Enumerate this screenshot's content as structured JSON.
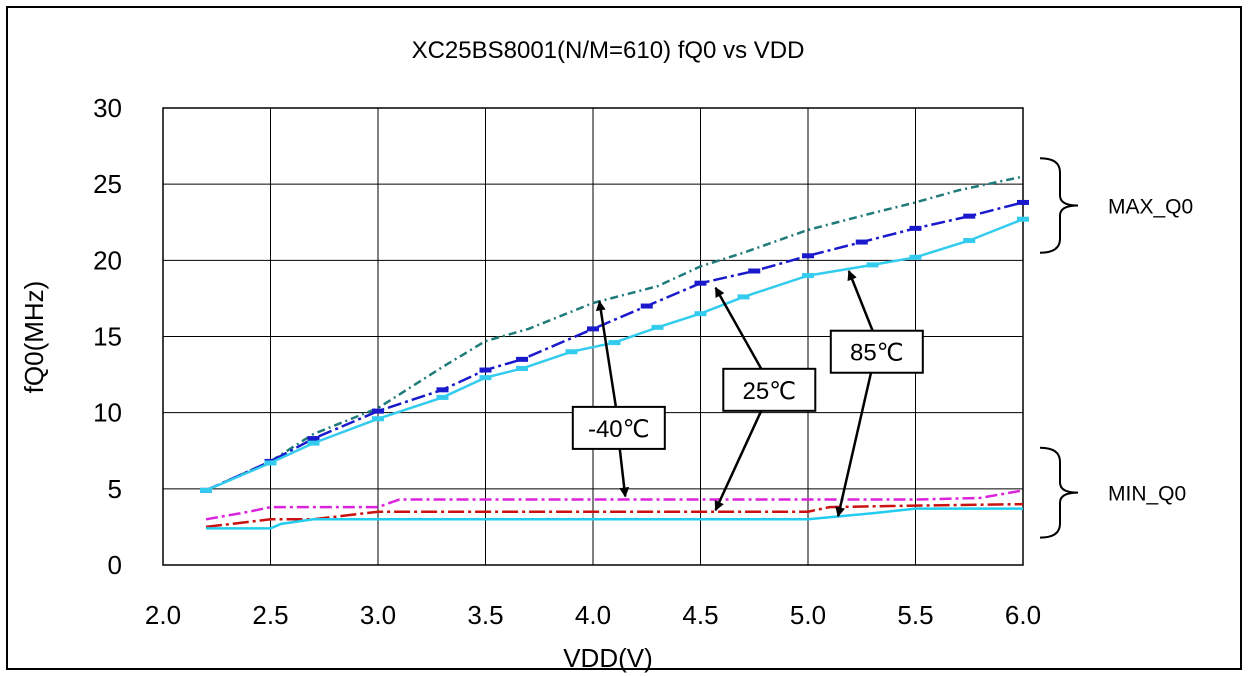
{
  "chart_data": {
    "type": "line",
    "title": "XC25BS8001(N/M=610)  fQ0 vs VDD",
    "xlabel": "VDD(V)",
    "ylabel": "fQ0(MHz)",
    "xlim": [
      2.0,
      6.0
    ],
    "ylim": [
      0,
      30
    ],
    "x_ticks": [
      "2.0",
      "2.5",
      "3.0",
      "3.5",
      "4.0",
      "4.5",
      "5.0",
      "5.5",
      "6.0"
    ],
    "y_ticks": [
      "0",
      "5",
      "10",
      "15",
      "20",
      "25",
      "30"
    ],
    "grid": true,
    "series": [
      {
        "color": "#1f7a7a",
        "dash": "8,4,2,4",
        "x": [
          2.2,
          2.5,
          2.7,
          3.0,
          3.3,
          3.5,
          3.7,
          4.0,
          4.3,
          4.5,
          4.7,
          5.0,
          5.3,
          5.5,
          5.7,
          6.0
        ],
        "y": [
          4.9,
          6.8,
          8.6,
          10.3,
          13.0,
          14.7,
          15.5,
          17.2,
          18.3,
          19.6,
          20.5,
          22.0,
          23.1,
          23.8,
          24.6,
          25.5
        ]
      },
      {
        "color": "#1a1acc",
        "dash": "14,4,3,4",
        "markers": true,
        "x": [
          2.2,
          2.5,
          2.7,
          3.0,
          3.3,
          3.5,
          3.67,
          4.0,
          4.25,
          4.5,
          4.75,
          5.0,
          5.25,
          5.5,
          5.75,
          6.0
        ],
        "y": [
          4.9,
          6.8,
          8.3,
          10.1,
          11.5,
          12.8,
          13.5,
          15.5,
          17.0,
          18.5,
          19.3,
          20.3,
          21.2,
          22.1,
          22.9,
          23.8
        ]
      },
      {
        "color": "#33ccee",
        "dash": "",
        "markers": true,
        "x": [
          2.2,
          2.5,
          2.7,
          3.0,
          3.3,
          3.5,
          3.67,
          3.9,
          4.1,
          4.3,
          4.5,
          4.7,
          5.0,
          5.3,
          5.5,
          5.75,
          6.0
        ],
        "y": [
          4.9,
          6.7,
          8.0,
          9.6,
          11.0,
          12.3,
          12.9,
          14.0,
          14.6,
          15.6,
          16.5,
          17.6,
          19.0,
          19.7,
          20.2,
          21.3,
          22.7
        ]
      },
      {
        "color": "#dd22dd",
        "dash": "12,4,3,4",
        "x": [
          2.2,
          2.4,
          2.5,
          3.0,
          3.1,
          3.5,
          4.0,
          4.5,
          5.0,
          5.5,
          5.8,
          6.0
        ],
        "y": [
          3.0,
          3.5,
          3.8,
          3.8,
          4.3,
          4.3,
          4.3,
          4.3,
          4.3,
          4.3,
          4.4,
          4.9
        ]
      },
      {
        "color": "#cc1111",
        "dash": "16,4,3,4",
        "x": [
          2.2,
          2.5,
          2.7,
          3.0,
          3.5,
          4.0,
          4.5,
          5.0,
          5.1,
          5.5,
          6.0
        ],
        "y": [
          2.5,
          3.0,
          3.0,
          3.5,
          3.5,
          3.5,
          3.5,
          3.5,
          3.8,
          3.9,
          4.0
        ]
      },
      {
        "color": "#22ccee",
        "dash": "",
        "x": [
          2.2,
          2.5,
          2.55,
          2.7,
          3.0,
          3.5,
          4.0,
          4.5,
          5.0,
          5.3,
          5.5,
          6.0
        ],
        "y": [
          2.4,
          2.4,
          2.7,
          3.0,
          3.0,
          3.0,
          3.0,
          3.0,
          3.0,
          3.4,
          3.7,
          3.7
        ]
      }
    ],
    "callouts": [
      {
        "label": "-40℃",
        "text_at": [
          4.12,
          9.0
        ],
        "arrows_to": [
          [
            4.03,
            17.3
          ],
          [
            4.15,
            4.5
          ]
        ]
      },
      {
        "label": "25℃",
        "text_at": [
          4.82,
          11.5
        ],
        "arrows_to": [
          [
            4.57,
            18.2
          ],
          [
            4.57,
            3.6
          ]
        ]
      },
      {
        "label": "85℃",
        "text_at": [
          5.32,
          14.0
        ],
        "arrows_to": [
          [
            5.19,
            19.3
          ],
          [
            5.14,
            3.2
          ]
        ]
      }
    ],
    "groups": [
      {
        "label": "MAX_Q0",
        "y_range": [
          20.5,
          26.7
        ]
      },
      {
        "label": "MIN_Q0",
        "y_range": [
          1.8,
          7.7
        ]
      }
    ]
  }
}
